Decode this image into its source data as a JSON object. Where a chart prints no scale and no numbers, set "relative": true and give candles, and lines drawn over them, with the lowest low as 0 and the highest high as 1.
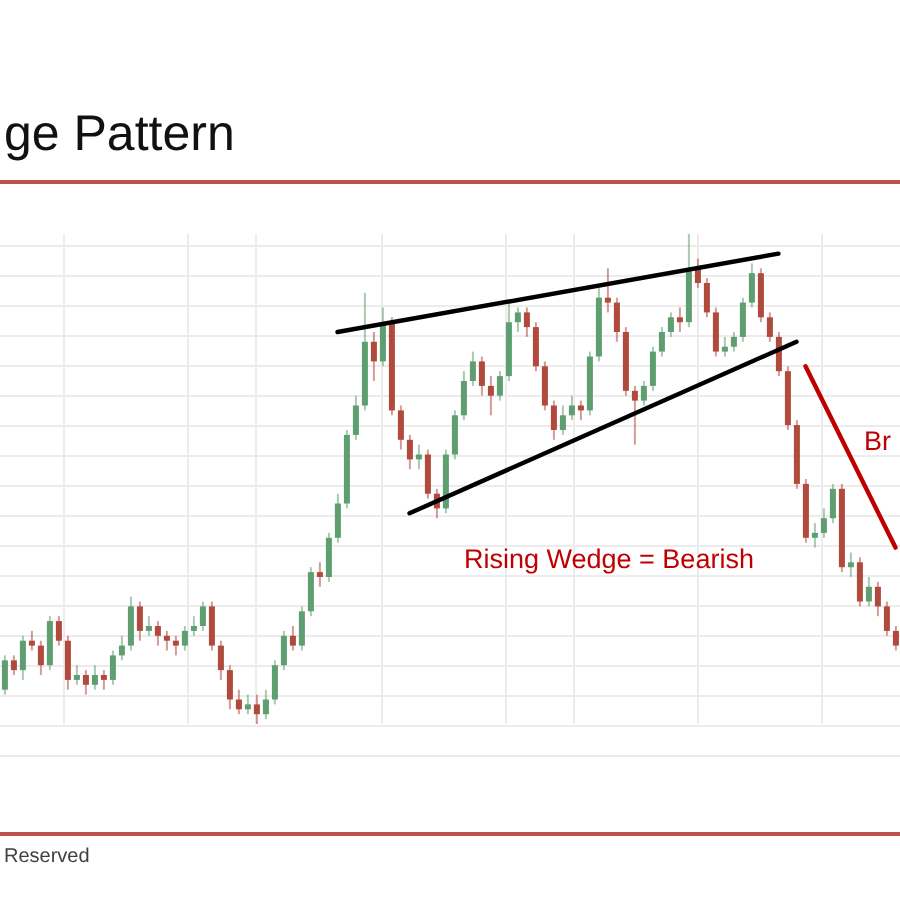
{
  "chart_data": {
    "type": "candlestick",
    "title": "ge Pattern",
    "relative": true,
    "tick_labels": false,
    "grid": true,
    "marker": "none",
    "categories": [
      null,
      null,
      null,
      null,
      null,
      null,
      null,
      null,
      null,
      null,
      null,
      null,
      null,
      null,
      null,
      null,
      null,
      null,
      null,
      null,
      null,
      null,
      null,
      null,
      null,
      null,
      null,
      null,
      null,
      null,
      null,
      null,
      null,
      null,
      null,
      null,
      null,
      null,
      null,
      null,
      null,
      null,
      null,
      null,
      null,
      null,
      null,
      null,
      null,
      null,
      null,
      null,
      null,
      null,
      null,
      null,
      null,
      null,
      null,
      null,
      null,
      null,
      null,
      null,
      null,
      null,
      null,
      null,
      null,
      null,
      null,
      null,
      null,
      null,
      null,
      null,
      null,
      null,
      null,
      null,
      null,
      null,
      null,
      null,
      null,
      null,
      null,
      null,
      null,
      null,
      null,
      null,
      null,
      null,
      null,
      null,
      null,
      null,
      null,
      null
    ],
    "ohlc": [
      [
        0.07,
        0.14,
        0.06,
        0.13
      ],
      [
        0.13,
        0.14,
        0.1,
        0.11
      ],
      [
        0.11,
        0.18,
        0.09,
        0.17
      ],
      [
        0.17,
        0.19,
        0.15,
        0.16
      ],
      [
        0.16,
        0.17,
        0.1,
        0.12
      ],
      [
        0.12,
        0.22,
        0.11,
        0.21
      ],
      [
        0.21,
        0.22,
        0.16,
        0.17
      ],
      [
        0.17,
        0.18,
        0.07,
        0.09
      ],
      [
        0.09,
        0.12,
        0.08,
        0.1
      ],
      [
        0.1,
        0.11,
        0.06,
        0.08
      ],
      [
        0.08,
        0.12,
        0.07,
        0.1
      ],
      [
        0.1,
        0.11,
        0.07,
        0.09
      ],
      [
        0.09,
        0.15,
        0.08,
        0.14
      ],
      [
        0.14,
        0.18,
        0.13,
        0.16
      ],
      [
        0.16,
        0.26,
        0.15,
        0.24
      ],
      [
        0.24,
        0.25,
        0.17,
        0.19
      ],
      [
        0.19,
        0.22,
        0.18,
        0.2
      ],
      [
        0.2,
        0.21,
        0.16,
        0.18
      ],
      [
        0.18,
        0.19,
        0.15,
        0.17
      ],
      [
        0.17,
        0.18,
        0.14,
        0.16
      ],
      [
        0.16,
        0.2,
        0.15,
        0.19
      ],
      [
        0.19,
        0.22,
        0.18,
        0.2
      ],
      [
        0.2,
        0.25,
        0.19,
        0.24
      ],
      [
        0.24,
        0.25,
        0.15,
        0.16
      ],
      [
        0.16,
        0.17,
        0.09,
        0.11
      ],
      [
        0.11,
        0.12,
        0.03,
        0.05
      ],
      [
        0.05,
        0.07,
        0.02,
        0.03
      ],
      [
        0.03,
        0.06,
        0.02,
        0.04
      ],
      [
        0.04,
        0.06,
        0,
        0.02
      ],
      [
        0.02,
        0.07,
        0.01,
        0.05
      ],
      [
        0.05,
        0.13,
        0.04,
        0.12
      ],
      [
        0.12,
        0.19,
        0.11,
        0.18
      ],
      [
        0.18,
        0.2,
        0.15,
        0.16
      ],
      [
        0.16,
        0.24,
        0.15,
        0.23
      ],
      [
        0.23,
        0.32,
        0.22,
        0.31
      ],
      [
        0.31,
        0.33,
        0.28,
        0.3
      ],
      [
        0.3,
        0.39,
        0.29,
        0.38
      ],
      [
        0.38,
        0.47,
        0.37,
        0.45
      ],
      [
        0.45,
        0.6,
        0.44,
        0.59
      ],
      [
        0.59,
        0.67,
        0.58,
        0.65
      ],
      [
        0.65,
        0.88,
        0.64,
        0.78
      ],
      [
        0.78,
        0.8,
        0.7,
        0.74
      ],
      [
        0.74,
        0.85,
        0.73,
        0.82
      ],
      [
        0.82,
        0.83,
        0.63,
        0.64
      ],
      [
        0.64,
        0.65,
        0.56,
        0.58
      ],
      [
        0.58,
        0.59,
        0.52,
        0.54
      ],
      [
        0.54,
        0.57,
        0.52,
        0.55
      ],
      [
        0.55,
        0.56,
        0.46,
        0.47
      ],
      [
        0.47,
        0.48,
        0.42,
        0.44
      ],
      [
        0.44,
        0.56,
        0.43,
        0.55
      ],
      [
        0.55,
        0.64,
        0.54,
        0.63
      ],
      [
        0.63,
        0.72,
        0.62,
        0.7
      ],
      [
        0.7,
        0.76,
        0.69,
        0.74
      ],
      [
        0.74,
        0.75,
        0.67,
        0.69
      ],
      [
        0.69,
        0.71,
        0.63,
        0.67
      ],
      [
        0.67,
        0.72,
        0.66,
        0.71
      ],
      [
        0.71,
        0.86,
        0.7,
        0.82
      ],
      [
        0.82,
        0.85,
        0.8,
        0.84
      ],
      [
        0.84,
        0.85,
        0.79,
        0.81
      ],
      [
        0.81,
        0.82,
        0.72,
        0.73
      ],
      [
        0.73,
        0.74,
        0.64,
        0.65
      ],
      [
        0.65,
        0.66,
        0.58,
        0.6
      ],
      [
        0.6,
        0.65,
        0.59,
        0.63
      ],
      [
        0.63,
        0.67,
        0.62,
        0.65
      ],
      [
        0.65,
        0.66,
        0.62,
        0.64
      ],
      [
        0.64,
        0.76,
        0.63,
        0.75
      ],
      [
        0.75,
        0.89,
        0.74,
        0.87
      ],
      [
        0.87,
        0.93,
        0.84,
        0.86
      ],
      [
        0.86,
        0.87,
        0.78,
        0.8
      ],
      [
        0.8,
        0.81,
        0.67,
        0.68
      ],
      [
        0.68,
        0.69,
        0.57,
        0.66
      ],
      [
        0.66,
        0.7,
        0.65,
        0.69
      ],
      [
        0.69,
        0.77,
        0.68,
        0.76
      ],
      [
        0.76,
        0.81,
        0.75,
        0.8
      ],
      [
        0.8,
        0.84,
        0.79,
        0.83
      ],
      [
        0.83,
        0.85,
        0.8,
        0.82
      ],
      [
        0.82,
        1,
        0.81,
        0.93
      ],
      [
        0.93,
        0.95,
        0.89,
        0.9
      ],
      [
        0.9,
        0.91,
        0.83,
        0.84
      ],
      [
        0.84,
        0.85,
        0.75,
        0.76
      ],
      [
        0.76,
        0.79,
        0.75,
        0.77
      ],
      [
        0.77,
        0.8,
        0.76,
        0.79
      ],
      [
        0.79,
        0.87,
        0.78,
        0.86
      ],
      [
        0.86,
        0.94,
        0.85,
        0.92
      ],
      [
        0.92,
        0.93,
        0.82,
        0.83
      ],
      [
        0.83,
        0.84,
        0.78,
        0.79
      ],
      [
        0.79,
        0.8,
        0.71,
        0.72
      ],
      [
        0.72,
        0.73,
        0.6,
        0.61
      ],
      [
        0.61,
        0.62,
        0.48,
        0.49
      ],
      [
        0.49,
        0.5,
        0.37,
        0.38
      ],
      [
        0.38,
        0.41,
        0.36,
        0.39
      ],
      [
        0.39,
        0.44,
        0.38,
        0.42
      ],
      [
        0.42,
        0.49,
        0.41,
        0.48
      ],
      [
        0.48,
        0.49,
        0.31,
        0.32
      ],
      [
        0.32,
        0.35,
        0.3,
        0.33
      ],
      [
        0.33,
        0.34,
        0.24,
        0.25
      ],
      [
        0.25,
        0.3,
        0.24,
        0.28
      ],
      [
        0.28,
        0.29,
        0.22,
        0.24
      ],
      [
        0.24,
        0.25,
        0.18,
        0.19
      ],
      [
        0.19,
        0.2,
        0.15,
        0.16
      ]
    ],
    "colors": [
      "#5e9e70",
      "#b04a3c",
      "#5e9e70",
      "#b04a3c",
      "#b04a3c",
      "#5e9e70",
      "#b04a3c",
      "#b04a3c",
      "#5e9e70",
      "#b04a3c",
      "#5e9e70",
      "#b04a3c",
      "#5e9e70",
      "#5e9e70",
      "#5e9e70",
      "#b04a3c",
      "#5e9e70",
      "#b04a3c",
      "#b04a3c",
      "#b04a3c",
      "#5e9e70",
      "#5e9e70",
      "#5e9e70",
      "#b04a3c",
      "#b04a3c",
      "#b04a3c",
      "#b04a3c",
      "#5e9e70",
      "#b04a3c",
      "#5e9e70",
      "#5e9e70",
      "#5e9e70",
      "#b04a3c",
      "#5e9e70",
      "#5e9e70",
      "#b04a3c",
      "#5e9e70",
      "#5e9e70",
      "#5e9e70",
      "#5e9e70",
      "#5e9e70",
      "#b04a3c",
      "#5e9e70",
      "#b04a3c",
      "#b04a3c",
      "#b04a3c",
      "#5e9e70",
      "#b04a3c",
      "#b04a3c",
      "#5e9e70",
      "#5e9e70",
      "#5e9e70",
      "#5e9e70",
      "#b04a3c",
      "#b04a3c",
      "#5e9e70",
      "#5e9e70",
      "#5e9e70",
      "#b04a3c",
      "#b04a3c",
      "#b04a3c",
      "#b04a3c",
      "#5e9e70",
      "#5e9e70",
      "#b04a3c",
      "#5e9e70",
      "#5e9e70",
      "#b04a3c",
      "#b04a3c",
      "#b04a3c",
      "#b04a3c",
      "#5e9e70",
      "#5e9e70",
      "#5e9e70",
      "#5e9e70",
      "#b04a3c",
      "#5e9e70",
      "#b04a3c",
      "#b04a3c",
      "#b04a3c",
      "#5e9e70",
      "#5e9e70",
      "#5e9e70",
      "#5e9e70",
      "#b04a3c",
      "#b04a3c",
      "#b04a3c",
      "#b04a3c",
      "#b04a3c",
      "#b04a3c",
      "#5e9e70",
      "#5e9e70",
      "#5e9e70",
      "#b04a3c",
      "#5e9e70",
      "#b04a3c",
      "#5e9e70",
      "#b04a3c",
      "#b04a3c",
      "#b04a3c"
    ],
    "series": [
      {
        "type": "line",
        "color": "#000000",
        "values": [
          null,
          null,
          null,
          null,
          null,
          null,
          null,
          null,
          null,
          null,
          null,
          null,
          null,
          null,
          null,
          null,
          null,
          null,
          null,
          null,
          null,
          null,
          null,
          null,
          null,
          null,
          null,
          null,
          null,
          null,
          null,
          null,
          null,
          null,
          null,
          null,
          null,
          0.8,
          null,
          null,
          null,
          null,
          null,
          null,
          null,
          null,
          null,
          null,
          null,
          null,
          null,
          null,
          null,
          null,
          null,
          null,
          null,
          null,
          null,
          null,
          null,
          null,
          null,
          null,
          null,
          null,
          null,
          null,
          null,
          null,
          null,
          null,
          null,
          null,
          null,
          null,
          null,
          null,
          null,
          null,
          null,
          null,
          null,
          null,
          null,
          null,
          0.96,
          null,
          null,
          null,
          null,
          null,
          null,
          null,
          null,
          null,
          null,
          null,
          null,
          null
        ]
      },
      {
        "type": "line",
        "color": "#000000",
        "values": [
          null,
          null,
          null,
          null,
          null,
          null,
          null,
          null,
          null,
          null,
          null,
          null,
          null,
          null,
          null,
          null,
          null,
          null,
          null,
          null,
          null,
          null,
          null,
          null,
          null,
          null,
          null,
          null,
          null,
          null,
          null,
          null,
          null,
          null,
          null,
          null,
          null,
          null,
          null,
          null,
          null,
          null,
          null,
          null,
          null,
          0.43,
          null,
          null,
          null,
          null,
          null,
          null,
          null,
          null,
          null,
          null,
          null,
          null,
          null,
          null,
          null,
          null,
          null,
          null,
          null,
          null,
          null,
          null,
          null,
          null,
          null,
          null,
          null,
          null,
          null,
          null,
          null,
          null,
          null,
          null,
          null,
          null,
          null,
          null,
          null,
          null,
          null,
          null,
          0.78,
          null,
          null,
          null,
          null,
          null,
          null,
          null,
          null,
          null,
          null,
          null
        ]
      },
      {
        "type": "line",
        "color": "#c00000",
        "values": [
          null,
          null,
          null,
          null,
          null,
          null,
          null,
          null,
          null,
          null,
          null,
          null,
          null,
          null,
          null,
          null,
          null,
          null,
          null,
          null,
          null,
          null,
          null,
          null,
          null,
          null,
          null,
          null,
          null,
          null,
          null,
          null,
          null,
          null,
          null,
          null,
          null,
          null,
          null,
          null,
          null,
          null,
          null,
          null,
          null,
          null,
          null,
          null,
          null,
          null,
          null,
          null,
          null,
          null,
          null,
          null,
          null,
          null,
          null,
          null,
          null,
          null,
          null,
          null,
          null,
          null,
          null,
          null,
          null,
          null,
          null,
          null,
          null,
          null,
          null,
          null,
          null,
          null,
          null,
          null,
          null,
          null,
          null,
          null,
          null,
          null,
          null,
          null,
          null,
          0.73,
          null,
          null,
          null,
          null,
          null,
          null,
          null,
          null,
          null,
          0.36
        ]
      }
    ],
    "annotations": [
      "Rising Wedge = Bearish",
      "Br",
      "Reserved"
    ]
  }
}
